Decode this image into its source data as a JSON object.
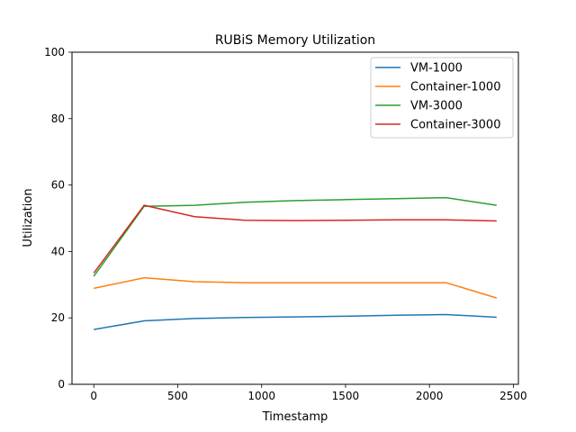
{
  "chart_data": {
    "type": "line",
    "title": "RUBiS Memory Utilization",
    "xlabel": "Timestamp",
    "ylabel": "Utilization",
    "xlim": [
      -130,
      2530
    ],
    "ylim": [
      0,
      100
    ],
    "xticks": [
      0,
      500,
      1000,
      1500,
      2000,
      2500
    ],
    "yticks": [
      0,
      20,
      40,
      60,
      80,
      100
    ],
    "legend_position": "top-right",
    "grid": false,
    "series": [
      {
        "name": "VM-1000",
        "color": "#1f77b4",
        "x": [
          0,
          300,
          600,
          900,
          1200,
          1500,
          1800,
          2100,
          2400
        ],
        "y": [
          16.5,
          19.1,
          19.8,
          20.1,
          20.3,
          20.5,
          20.8,
          21.0,
          20.2
        ]
      },
      {
        "name": "Container-1000",
        "color": "#ff7f0e",
        "x": [
          0,
          300,
          600,
          900,
          1200,
          1500,
          1800,
          2100,
          2400
        ],
        "y": [
          28.9,
          32.1,
          30.9,
          30.6,
          30.6,
          30.6,
          30.6,
          30.6,
          26.0
        ]
      },
      {
        "name": "VM-3000",
        "color": "#2ca02c",
        "x": [
          0,
          300,
          600,
          900,
          1200,
          1500,
          1800,
          2100,
          2400
        ],
        "y": [
          32.5,
          53.6,
          53.9,
          54.8,
          55.3,
          55.6,
          55.9,
          56.2,
          53.9
        ]
      },
      {
        "name": "Container-3000",
        "color": "#d62728",
        "x": [
          0,
          300,
          600,
          900,
          1200,
          1500,
          1800,
          2100,
          2400
        ],
        "y": [
          33.5,
          53.9,
          50.5,
          49.4,
          49.3,
          49.4,
          49.5,
          49.5,
          49.2
        ]
      }
    ]
  }
}
